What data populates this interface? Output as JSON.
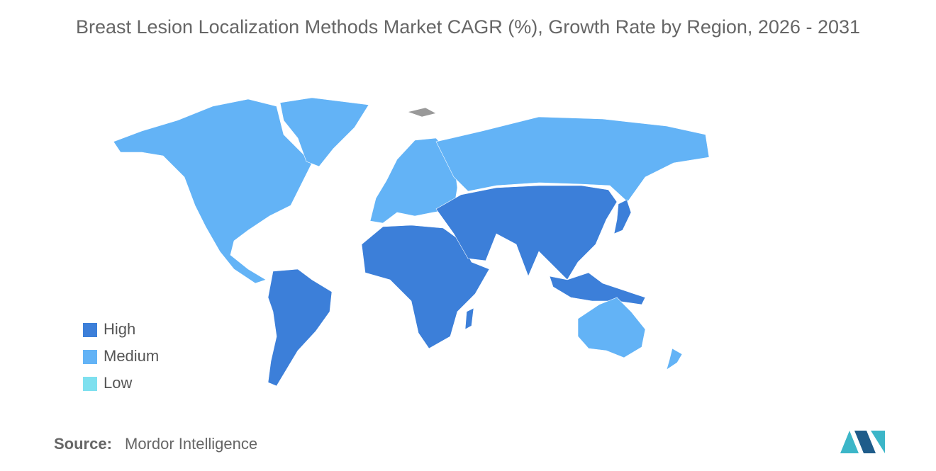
{
  "title": "Breast Lesion Localization Methods Market CAGR (%), Growth Rate by Region, 2026 - 2031",
  "legend": [
    {
      "label": "High",
      "color": "#3c7fd9"
    },
    {
      "label": "Medium",
      "color": "#63b3f6"
    },
    {
      "label": "Low",
      "color": "#7ee0ef"
    }
  ],
  "source": {
    "label": "Source:",
    "text": "Mordor Intelligence"
  }
}
